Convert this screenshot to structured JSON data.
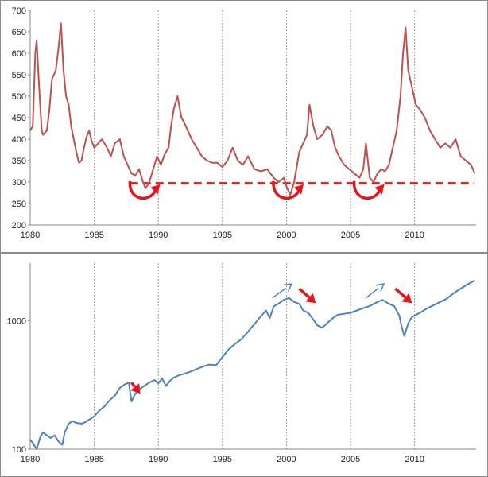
{
  "chart_data": [
    {
      "type": "line",
      "title": "",
      "xlabel": "",
      "ylabel": "",
      "xlim": [
        1980,
        2014.8
      ],
      "ylim": [
        200,
        700
      ],
      "x_ticks": [
        1980,
        1985,
        1990,
        1995,
        2000,
        2005,
        2010
      ],
      "y_ticks": [
        200,
        250,
        300,
        350,
        400,
        450,
        500,
        550,
        600,
        650,
        700
      ],
      "grid": "vertical-dashed",
      "reference_line": {
        "y": 297,
        "color": "#e8141c",
        "style": "dashed"
      },
      "annotations": [
        {
          "type": "curved-arrow",
          "x": 1988.9,
          "y": 280,
          "color": "#e8141c"
        },
        {
          "type": "curved-arrow",
          "x": 2000.1,
          "y": 280,
          "color": "#e8141c"
        },
        {
          "type": "curved-arrow",
          "x": 2006.4,
          "y": 280,
          "color": "#e8141c"
        }
      ],
      "series": [
        {
          "color": "#c0504d",
          "x": [
            1980.0,
            1980.2,
            1980.4,
            1980.5,
            1980.7,
            1980.9,
            1981.0,
            1981.3,
            1981.5,
            1981.7,
            1982.0,
            1982.2,
            1982.4,
            1982.6,
            1982.8,
            1983.0,
            1983.2,
            1983.4,
            1983.6,
            1983.8,
            1984.0,
            1984.2,
            1984.4,
            1984.6,
            1984.8,
            1985.0,
            1985.3,
            1985.6,
            1986.0,
            1986.3,
            1986.6,
            1987.0,
            1987.3,
            1987.6,
            1987.9,
            1988.2,
            1988.5,
            1988.8,
            1989.0,
            1989.3,
            1989.6,
            1989.9,
            1990.2,
            1990.5,
            1990.8,
            1991.0,
            1991.2,
            1991.5,
            1991.8,
            1992.0,
            1992.3,
            1992.6,
            1993.0,
            1993.4,
            1993.8,
            1994.2,
            1994.6,
            1995.0,
            1995.4,
            1995.8,
            1996.2,
            1996.6,
            1997.0,
            1997.5,
            1998.0,
            1998.5,
            1999.0,
            1999.4,
            1999.8,
            2000.0,
            2000.3,
            2000.6,
            2001.0,
            2001.3,
            2001.6,
            2001.8,
            2002.1,
            2002.4,
            2002.8,
            2003.2,
            2003.5,
            2003.8,
            2004.1,
            2004.5,
            2004.9,
            2005.3,
            2005.7,
            2006.0,
            2006.2,
            2006.5,
            2006.8,
            2007.1,
            2007.4,
            2007.7,
            2008.0,
            2008.3,
            2008.6,
            2008.9,
            2009.1,
            2009.3,
            2009.5,
            2009.8,
            2010.1,
            2010.4,
            2010.8,
            2011.2,
            2011.6,
            2012.0,
            2012.4,
            2012.8,
            2013.2,
            2013.6,
            2014.0,
            2014.4,
            2014.7
          ],
          "y": [
            420,
            430,
            600,
            630,
            520,
            420,
            410,
            420,
            470,
            540,
            560,
            610,
            670,
            560,
            500,
            480,
            430,
            400,
            370,
            345,
            350,
            380,
            405,
            420,
            395,
            380,
            390,
            400,
            380,
            360,
            390,
            400,
            360,
            340,
            320,
            315,
            330,
            300,
            285,
            300,
            330,
            360,
            340,
            365,
            380,
            430,
            470,
            500,
            450,
            440,
            420,
            400,
            380,
            360,
            350,
            345,
            345,
            335,
            350,
            380,
            350,
            340,
            360,
            330,
            325,
            330,
            310,
            300,
            310,
            290,
            270,
            300,
            370,
            390,
            410,
            480,
            430,
            400,
            410,
            430,
            420,
            380,
            360,
            340,
            330,
            320,
            310,
            330,
            390,
            310,
            300,
            320,
            330,
            325,
            340,
            380,
            420,
            500,
            600,
            660,
            560,
            520,
            480,
            470,
            450,
            420,
            400,
            380,
            390,
            380,
            400,
            360,
            350,
            340,
            320
          ]
        }
      ]
    },
    {
      "type": "line",
      "title": "",
      "xlabel": "",
      "ylabel": "",
      "yscale": "log",
      "xlim": [
        1980,
        2014.8
      ],
      "ylim": [
        100,
        2800
      ],
      "x_ticks": [
        1980,
        1985,
        1990,
        1995,
        2000,
        2005,
        2010
      ],
      "y_ticks": [
        100,
        1000
      ],
      "grid": "vertical-dashed",
      "annotations": [
        {
          "type": "arrow",
          "color": "#e8141c",
          "from": [
            1987.9,
            330
          ],
          "to": [
            1988.6,
            270
          ]
        },
        {
          "type": "arrow",
          "color": "#e8141c",
          "from": [
            2001.0,
            1770
          ],
          "to": [
            2002.3,
            1370
          ]
        },
        {
          "type": "arrow",
          "color": "#e8141c",
          "from": [
            2008.5,
            1770
          ],
          "to": [
            2009.8,
            1370
          ]
        },
        {
          "type": "arrow",
          "color": "#4f81bd",
          "from": [
            1998.9,
            1500
          ],
          "to": [
            2000.4,
            1930
          ]
        },
        {
          "type": "arrow",
          "color": "#4f81bd",
          "from": [
            2006.2,
            1500
          ],
          "to": [
            2007.6,
            1930
          ]
        }
      ],
      "series": [
        {
          "color": "#4f81bd",
          "x": [
            1980.0,
            1980.2,
            1980.5,
            1980.8,
            1981.0,
            1981.3,
            1981.6,
            1981.9,
            1982.2,
            1982.5,
            1982.7,
            1983.0,
            1983.3,
            1983.6,
            1984.0,
            1984.3,
            1984.7,
            1985.0,
            1985.4,
            1985.8,
            1986.2,
            1986.6,
            1987.0,
            1987.4,
            1987.7,
            1987.9,
            1988.2,
            1988.5,
            1988.9,
            1989.3,
            1989.7,
            1990.0,
            1990.3,
            1990.6,
            1990.9,
            1991.2,
            1991.6,
            1992.0,
            1992.5,
            1993.0,
            1993.5,
            1994.0,
            1994.5,
            1995.0,
            1995.5,
            1996.0,
            1996.5,
            1997.0,
            1997.5,
            1998.0,
            1998.4,
            1998.7,
            1999.0,
            1999.4,
            1999.8,
            2000.2,
            2000.6,
            2001.0,
            2001.3,
            2001.7,
            2002.0,
            2002.4,
            2002.8,
            2003.2,
            2003.6,
            2004.0,
            2004.5,
            2005.0,
            2005.5,
            2006.0,
            2006.5,
            2007.0,
            2007.5,
            2008.0,
            2008.4,
            2008.8,
            2009.0,
            2009.2,
            2009.5,
            2009.8,
            2010.2,
            2010.6,
            2011.0,
            2011.5,
            2012.0,
            2012.5,
            2013.0,
            2013.5,
            2014.0,
            2014.4,
            2014.7
          ],
          "y": [
            118,
            112,
            100,
            125,
            135,
            128,
            122,
            128,
            115,
            108,
            135,
            158,
            165,
            160,
            158,
            162,
            172,
            180,
            200,
            215,
            240,
            260,
            300,
            320,
            330,
            235,
            270,
            290,
            310,
            330,
            345,
            325,
            355,
            310,
            340,
            360,
            375,
            385,
            400,
            420,
            440,
            455,
            450,
            520,
            600,
            660,
            720,
            820,
            940,
            1080,
            1200,
            1050,
            1290,
            1360,
            1450,
            1500,
            1400,
            1350,
            1200,
            1150,
            1050,
            920,
            880,
            960,
            1040,
            1110,
            1130,
            1150,
            1200,
            1250,
            1300,
            1380,
            1450,
            1350,
            1300,
            1100,
            890,
            760,
            950,
            1070,
            1120,
            1180,
            1250,
            1320,
            1400,
            1480,
            1620,
            1750,
            1880,
            1980,
            2060
          ]
        }
      ]
    }
  ]
}
